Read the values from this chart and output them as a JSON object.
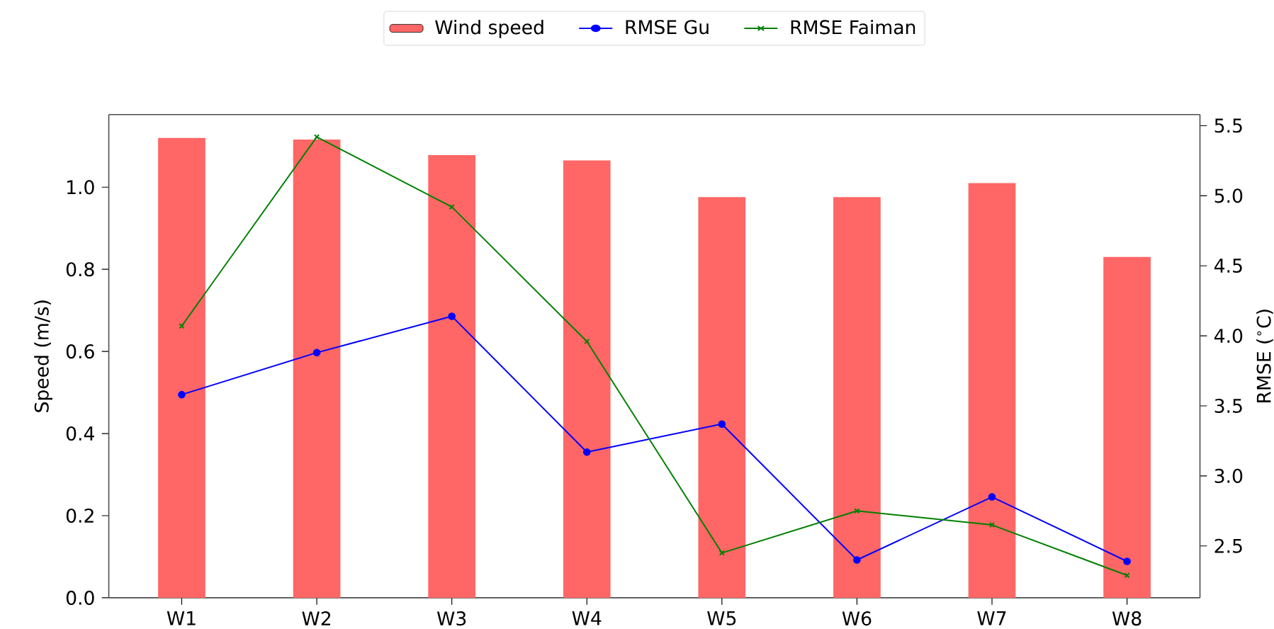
{
  "chart_data": {
    "type": "bar",
    "ylabel": "Speed (m/s)",
    "y2label": "RMSE ($^{∘}$C)",
    "categories": [
      "W1",
      "W2",
      "W3",
      "W4",
      "W5",
      "W6",
      "W7",
      "W8"
    ],
    "series": [
      {
        "name": "Wind speed",
        "color": "#ff6666",
        "values": [
          1.12,
          1.116,
          1.078,
          1.065,
          0.976,
          0.976,
          1.01,
          0.83
        ]
      },
      {
        "name": "RMSE Gu",
        "type": "line",
        "axis": "y2",
        "marker": "circle",
        "color": "#0000ff",
        "values": [
          3.58,
          3.88,
          4.14,
          3.17,
          3.37,
          2.4,
          2.85,
          2.39
        ]
      },
      {
        "name": "RMSE Faiman",
        "type": "line",
        "axis": "y2",
        "marker": "cross",
        "color": "#008000",
        "values": [
          4.07,
          5.42,
          4.92,
          3.96,
          2.45,
          2.75,
          2.65,
          2.29
        ]
      }
    ],
    "ylim": [
      0,
      1.177
    ],
    "yticks": [
      {
        "value": 0,
        "label": "0.0"
      },
      {
        "value": 0.2,
        "label": "0.2"
      },
      {
        "value": 0.4,
        "label": "0.4"
      },
      {
        "value": 0.6,
        "label": "0.6"
      },
      {
        "value": 0.8,
        "label": "0.8"
      },
      {
        "value": 1.0,
        "label": "1.0"
      }
    ],
    "y2lim": [
      2.13,
      5.58
    ],
    "y2ticks": [
      {
        "value": 2.5,
        "label": "2.5"
      },
      {
        "value": 3.0,
        "label": "3.0"
      },
      {
        "value": 3.5,
        "label": "3.5"
      },
      {
        "value": 4.0,
        "label": "4.0"
      },
      {
        "value": 4.5,
        "label": "4.5"
      },
      {
        "value": 5.0,
        "label": "5.0"
      },
      {
        "value": 5.5,
        "label": "5.5"
      }
    ],
    "legend": "top"
  }
}
